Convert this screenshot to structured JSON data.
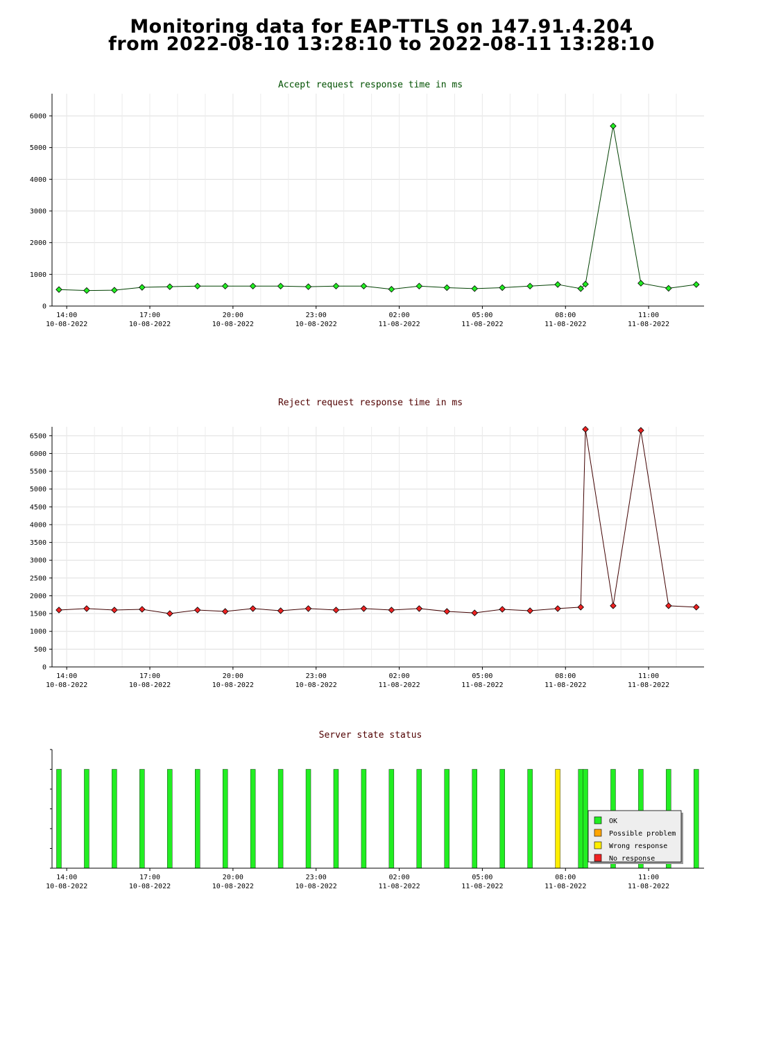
{
  "header": {
    "line1": "Monitoring data for EAP-TTLS on 147.91.4.204",
    "line2": "from 2022-08-10 13:28:10 to 2022-08-11 13:28:10"
  },
  "x_axis": {
    "tick_times": [
      "14:00",
      "17:00",
      "20:00",
      "23:00",
      "02:00",
      "05:00",
      "08:00",
      "11:00"
    ],
    "tick_dates": [
      "10-08-2022",
      "10-08-2022",
      "10-08-2022",
      "10-08-2022",
      "11-08-2022",
      "11-08-2022",
      "11-08-2022",
      "11-08-2022"
    ],
    "tick_hours": [
      0.53,
      3.53,
      6.53,
      9.53,
      12.53,
      15.53,
      18.53,
      21.53
    ],
    "range_hours": [
      0,
      23.53
    ]
  },
  "chart_data": [
    {
      "type": "line",
      "title": "Accept request response time in ms",
      "title_color": "#005000",
      "line_color": "#004000",
      "marker_color": "#22ee22",
      "xlabel": "",
      "ylabel": "",
      "ylim": [
        0,
        6700
      ],
      "yticks": [
        0,
        1000,
        2000,
        3000,
        4000,
        5000,
        6000
      ],
      "grid": true,
      "x": [
        0.25,
        1.25,
        2.25,
        3.25,
        4.25,
        5.25,
        6.25,
        7.25,
        8.25,
        9.25,
        10.25,
        11.25,
        12.25,
        13.25,
        14.25,
        15.25,
        16.25,
        17.25,
        18.25,
        19.08,
        19.25,
        20.25,
        21.25,
        22.25,
        23.25
      ],
      "series": [
        {
          "values": [
            520,
            490,
            500,
            590,
            610,
            630,
            630,
            630,
            630,
            610,
            630,
            630,
            530,
            630,
            580,
            550,
            580,
            630,
            680,
            550,
            690,
            5680,
            720,
            560,
            680
          ]
        }
      ]
    },
    {
      "type": "line",
      "title": "Reject request response time in ms",
      "title_color": "#500000",
      "line_color": "#400000",
      "marker_color": "#ee2222",
      "xlabel": "",
      "ylabel": "",
      "ylim": [
        0,
        6750
      ],
      "yticks": [
        0,
        500,
        1000,
        1500,
        2000,
        2500,
        3000,
        3500,
        4000,
        4500,
        5000,
        5500,
        6000,
        6500
      ],
      "grid": true,
      "x": [
        0.25,
        1.25,
        2.25,
        3.25,
        4.25,
        5.25,
        6.25,
        7.25,
        8.25,
        9.25,
        10.25,
        11.25,
        12.25,
        13.25,
        14.25,
        15.25,
        16.25,
        17.25,
        18.25,
        19.08,
        19.25,
        20.25,
        21.25,
        22.25,
        23.25
      ],
      "series": [
        {
          "values": [
            1600,
            1640,
            1600,
            1620,
            1500,
            1600,
            1560,
            1640,
            1580,
            1640,
            1600,
            1640,
            1600,
            1640,
            1560,
            1520,
            1620,
            1580,
            1640,
            1680,
            6680,
            1720,
            6650,
            1720,
            1680
          ]
        }
      ]
    },
    {
      "type": "bar",
      "title": "Server state status",
      "title_color": "#500000",
      "xlabel": "",
      "ylabel": "",
      "ylim": [
        0,
        1.2
      ],
      "grid": false,
      "x": [
        0.25,
        1.25,
        2.25,
        3.25,
        4.25,
        5.25,
        6.25,
        7.25,
        8.25,
        9.25,
        10.25,
        11.25,
        12.25,
        13.25,
        14.25,
        15.25,
        16.25,
        17.25,
        18.25,
        19.08,
        19.25,
        20.25,
        21.25,
        22.25,
        23.25
      ],
      "states": [
        "OK",
        "OK",
        "OK",
        "OK",
        "OK",
        "OK",
        "OK",
        "OK",
        "OK",
        "OK",
        "OK",
        "OK",
        "OK",
        "OK",
        "OK",
        "OK",
        "OK",
        "OK",
        "Wrong response",
        "OK",
        "OK",
        "OK",
        "OK",
        "OK",
        "OK"
      ],
      "legend": {
        "placement": "bottom-right",
        "entries": [
          {
            "label": "OK",
            "color": "#22ee22"
          },
          {
            "label": "Possible problem",
            "color": "#ffa500"
          },
          {
            "label": "Wrong response",
            "color": "#ffee00"
          },
          {
            "label": "No response",
            "color": "#ee2222"
          }
        ]
      }
    }
  ]
}
